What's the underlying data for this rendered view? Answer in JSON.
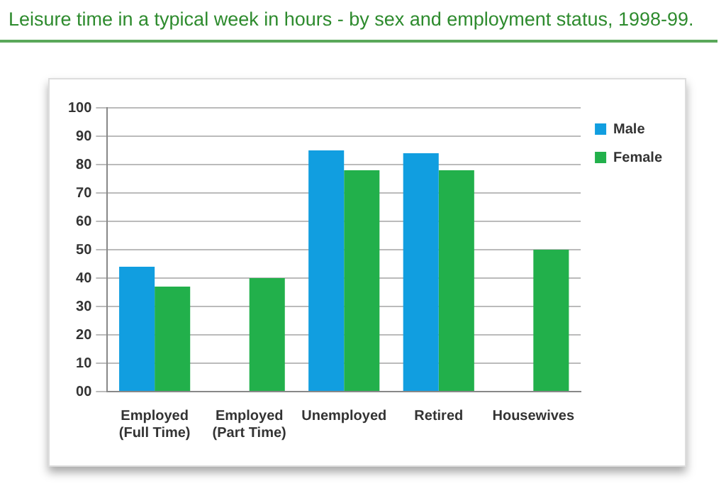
{
  "chart_data": {
    "type": "bar",
    "title": "Leisure time in a typical week in hours - by sex and employment status, 1998-99.",
    "categories": [
      "Employed (Full Time)",
      "Employed (Part Time)",
      "Unemployed",
      "Retired",
      "Housewives"
    ],
    "series": [
      {
        "name": "Male",
        "color": "#119ee0",
        "values": [
          44,
          null,
          85,
          84,
          null
        ]
      },
      {
        "name": "Female",
        "color": "#22b04b",
        "values": [
          37,
          40,
          78,
          78,
          50
        ]
      }
    ],
    "ylim": [
      0,
      100
    ],
    "yticks": [
      {
        "value": 0,
        "label": "00"
      },
      10,
      20,
      30,
      40,
      50,
      60,
      70,
      80,
      90,
      100
    ],
    "grid": "y",
    "legend": "top right"
  }
}
